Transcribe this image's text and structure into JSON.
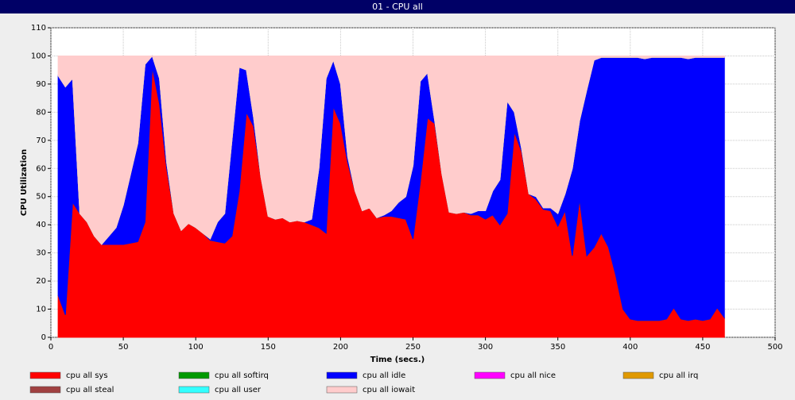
{
  "chart_data": {
    "type": "stacked-area",
    "title": "01 - CPU all",
    "x_label": "Time (secs.)",
    "y_label": "CPU Utilization",
    "xlim": [
      0,
      500
    ],
    "ylim": [
      0,
      110
    ],
    "xticks": [
      0,
      50,
      100,
      150,
      200,
      250,
      300,
      350,
      400,
      450,
      500
    ],
    "yticks": [
      0,
      10,
      20,
      30,
      40,
      50,
      60,
      70,
      80,
      90,
      100,
      110
    ],
    "grid": true,
    "x": [
      5,
      10,
      15,
      20,
      25,
      30,
      35,
      40,
      45,
      50,
      55,
      60,
      65,
      70,
      75,
      80,
      85,
      90,
      95,
      100,
      105,
      110,
      115,
      120,
      125,
      130,
      135,
      140,
      145,
      150,
      155,
      160,
      165,
      170,
      175,
      180,
      185,
      190,
      195,
      200,
      205,
      210,
      215,
      220,
      225,
      230,
      235,
      240,
      245,
      250,
      255,
      260,
      265,
      270,
      275,
      280,
      285,
      290,
      295,
      300,
      305,
      310,
      315,
      320,
      325,
      330,
      335,
      340,
      345,
      350,
      355,
      360,
      365,
      370,
      375,
      380,
      385,
      390,
      395,
      400,
      405,
      410,
      415,
      420,
      425,
      430,
      435,
      440,
      445,
      450,
      455,
      460,
      465
    ],
    "series": [
      {
        "name": "cpu all sys",
        "color": "#ff0000",
        "values": [
          15,
          8,
          48,
          44,
          41,
          36,
          33,
          33,
          33,
          33,
          33.5,
          34,
          41,
          96,
          83,
          60,
          44,
          38,
          40.5,
          39,
          37,
          34.5,
          34,
          33.5,
          36,
          52,
          80,
          75,
          57,
          43,
          42,
          42.5,
          41,
          41.5,
          41,
          40,
          39,
          37,
          82,
          76,
          62,
          52,
          45,
          46,
          42.5,
          43,
          43,
          42.5,
          42,
          35,
          55,
          78,
          76,
          58,
          44.5,
          44,
          44.5,
          43.5,
          43.5,
          42,
          43.5,
          40,
          44,
          73,
          66,
          51,
          49,
          45.5,
          45,
          39.5,
          45,
          29,
          49,
          29,
          32,
          37,
          32,
          22,
          10,
          6.5,
          6,
          6,
          6,
          6,
          6.5,
          10.5,
          6.5,
          6,
          6.5,
          6,
          6.5,
          10.5,
          7
        ]
      },
      {
        "name": "cpu all softirq",
        "color": "#009900",
        "values": [
          0,
          0,
          0,
          0,
          0,
          0,
          0,
          0,
          0,
          0,
          0,
          0,
          0,
          0,
          0,
          0,
          0,
          0,
          0,
          0,
          0,
          0,
          0,
          0,
          0,
          0,
          0,
          0,
          0,
          0,
          0,
          0,
          0,
          0,
          0,
          0,
          0,
          0,
          0,
          0,
          0,
          0,
          0,
          0,
          0,
          0,
          0,
          0,
          0,
          0,
          0,
          0,
          0,
          0,
          0,
          0,
          0,
          0,
          0,
          0,
          0,
          0,
          0,
          0,
          0,
          0,
          0,
          0,
          0,
          0,
          0,
          0,
          0,
          0,
          0,
          0,
          0,
          0,
          0,
          0,
          0,
          0,
          0,
          0,
          0,
          0,
          0,
          0,
          0,
          0,
          0,
          0,
          0
        ]
      },
      {
        "name": "cpu all idle",
        "color": "#0000ff",
        "values": [
          78,
          81,
          44,
          0,
          0,
          0,
          0,
          3,
          6,
          14,
          24.5,
          35,
          56,
          4,
          9,
          2,
          0,
          0,
          0,
          0,
          0,
          0.5,
          7,
          10.5,
          34,
          44,
          15,
          3,
          0,
          0,
          0,
          0,
          0,
          0,
          0,
          2,
          21,
          55,
          16.5,
          14,
          2,
          0,
          0,
          0,
          0,
          0.5,
          2,
          5.5,
          8,
          26,
          36,
          16,
          1,
          0,
          0,
          0,
          0,
          0.5,
          1.5,
          3,
          8.5,
          16,
          40,
          7,
          1,
          0,
          1,
          0.5,
          1,
          4.5,
          6,
          31,
          28,
          59,
          66.5,
          62.5,
          67.5,
          77.5,
          89.5,
          93,
          93.5,
          93,
          93.5,
          93.5,
          93,
          89,
          93,
          93,
          93,
          93.5,
          93,
          89,
          92.5
        ]
      },
      {
        "name": "cpu all nice",
        "color": "#ff00ff",
        "values": [
          0,
          0,
          0,
          0,
          0,
          0,
          0,
          0,
          0,
          0,
          0,
          0,
          0,
          0,
          0,
          0,
          0,
          0,
          0,
          0,
          0,
          0,
          0,
          0,
          0,
          0,
          0,
          0,
          0,
          0,
          0,
          0,
          0,
          0,
          0,
          0,
          0,
          0,
          0,
          0,
          0,
          0,
          0,
          0,
          0,
          0,
          0,
          0,
          0,
          0,
          0,
          0,
          0,
          0,
          0,
          0,
          0,
          0,
          0,
          0,
          0,
          0,
          0,
          0,
          0,
          0,
          0,
          0,
          0,
          0,
          0,
          0,
          0,
          0,
          0,
          0,
          0,
          0,
          0,
          0,
          0,
          0,
          0,
          0,
          0,
          0,
          0,
          0,
          0,
          0,
          0,
          0,
          0
        ]
      },
      {
        "name": "cpu all irq",
        "color": "#e09900",
        "values": [
          0,
          0,
          0,
          0,
          0,
          0,
          0,
          0,
          0,
          0,
          0,
          0,
          0,
          0,
          0,
          0,
          0,
          0,
          0,
          0,
          0,
          0,
          0,
          0,
          0,
          0,
          0,
          0,
          0,
          0,
          0,
          0,
          0,
          0,
          0,
          0,
          0,
          0,
          0,
          0,
          0,
          0,
          0,
          0,
          0,
          0,
          0,
          0,
          0,
          0,
          0,
          0,
          0,
          0,
          0,
          0,
          0,
          0,
          0,
          0,
          0,
          0,
          0,
          0,
          0,
          0,
          0,
          0,
          0,
          0,
          0,
          0,
          0,
          0,
          0,
          0,
          0,
          0,
          0,
          0,
          0,
          0,
          0,
          0,
          0,
          0,
          0,
          0,
          0,
          0,
          0,
          0,
          0
        ]
      },
      {
        "name": "cpu all steal",
        "color": "#a04040",
        "values": [
          0,
          0,
          0,
          0,
          0,
          0,
          0,
          0,
          0,
          0,
          0,
          0,
          0,
          0,
          0,
          0,
          0,
          0,
          0,
          0,
          0,
          0,
          0,
          0,
          0,
          0,
          0,
          0,
          0,
          0,
          0,
          0,
          0,
          0,
          0,
          0,
          0,
          0,
          0,
          0,
          0,
          0,
          0,
          0,
          0,
          0,
          0,
          0,
          0,
          0,
          0,
          0,
          0,
          0,
          0,
          0,
          0,
          0,
          0,
          0,
          0,
          0,
          0,
          0,
          0,
          0,
          0,
          0,
          0,
          0,
          0,
          0,
          0,
          0,
          0,
          0,
          0,
          0,
          0,
          0,
          0,
          0,
          0,
          0,
          0,
          0,
          0,
          0,
          0,
          0,
          0,
          0,
          0
        ]
      },
      {
        "name": "cpu all user",
        "color": "#33ffff",
        "values": [
          0,
          0,
          0,
          0,
          0,
          0,
          0,
          0,
          0,
          0,
          0,
          0,
          0,
          0,
          0,
          0,
          0,
          0,
          0,
          0,
          0,
          0,
          0,
          0,
          0,
          0,
          0,
          0,
          0,
          0,
          0,
          0,
          0,
          0,
          0,
          0,
          0,
          0,
          0,
          0,
          0,
          0,
          0,
          0,
          0,
          0,
          0,
          0,
          0,
          0,
          0,
          0,
          0,
          0,
          0,
          0,
          0,
          0,
          0,
          0,
          0,
          0,
          0,
          0,
          0,
          0,
          0,
          0,
          0,
          0,
          0,
          0,
          0,
          0,
          0,
          0,
          0,
          0,
          0,
          0,
          0,
          0,
          0,
          0,
          0,
          0,
          0,
          0,
          0,
          0,
          0,
          0,
          0
        ]
      },
      {
        "name": "cpu all iowait",
        "color": "#ffcccc",
        "values": [
          7,
          11,
          8,
          56,
          59,
          64,
          67,
          64,
          61,
          53,
          42,
          31,
          3,
          0,
          8,
          38,
          56,
          62,
          59.5,
          61,
          63,
          65,
          59,
          56,
          30,
          4,
          5,
          22,
          43,
          57,
          58,
          57.5,
          59,
          58.5,
          59,
          58,
          40,
          8,
          1.5,
          10,
          36,
          48,
          55,
          54,
          57.5,
          56.5,
          55,
          52,
          50,
          39,
          9,
          6,
          23,
          42,
          55.5,
          56,
          55.5,
          56,
          55,
          55,
          48,
          44,
          16,
          20,
          33,
          49,
          50,
          54,
          54,
          56,
          49,
          40,
          23,
          12,
          1.5,
          0.5,
          0.5,
          0.5,
          0.5,
          0.5,
          0.5,
          1,
          0.5,
          0.5,
          0.5,
          0.5,
          0.5,
          1,
          0.5,
          0.5,
          0.5,
          0.5,
          0.5
        ]
      }
    ]
  }
}
